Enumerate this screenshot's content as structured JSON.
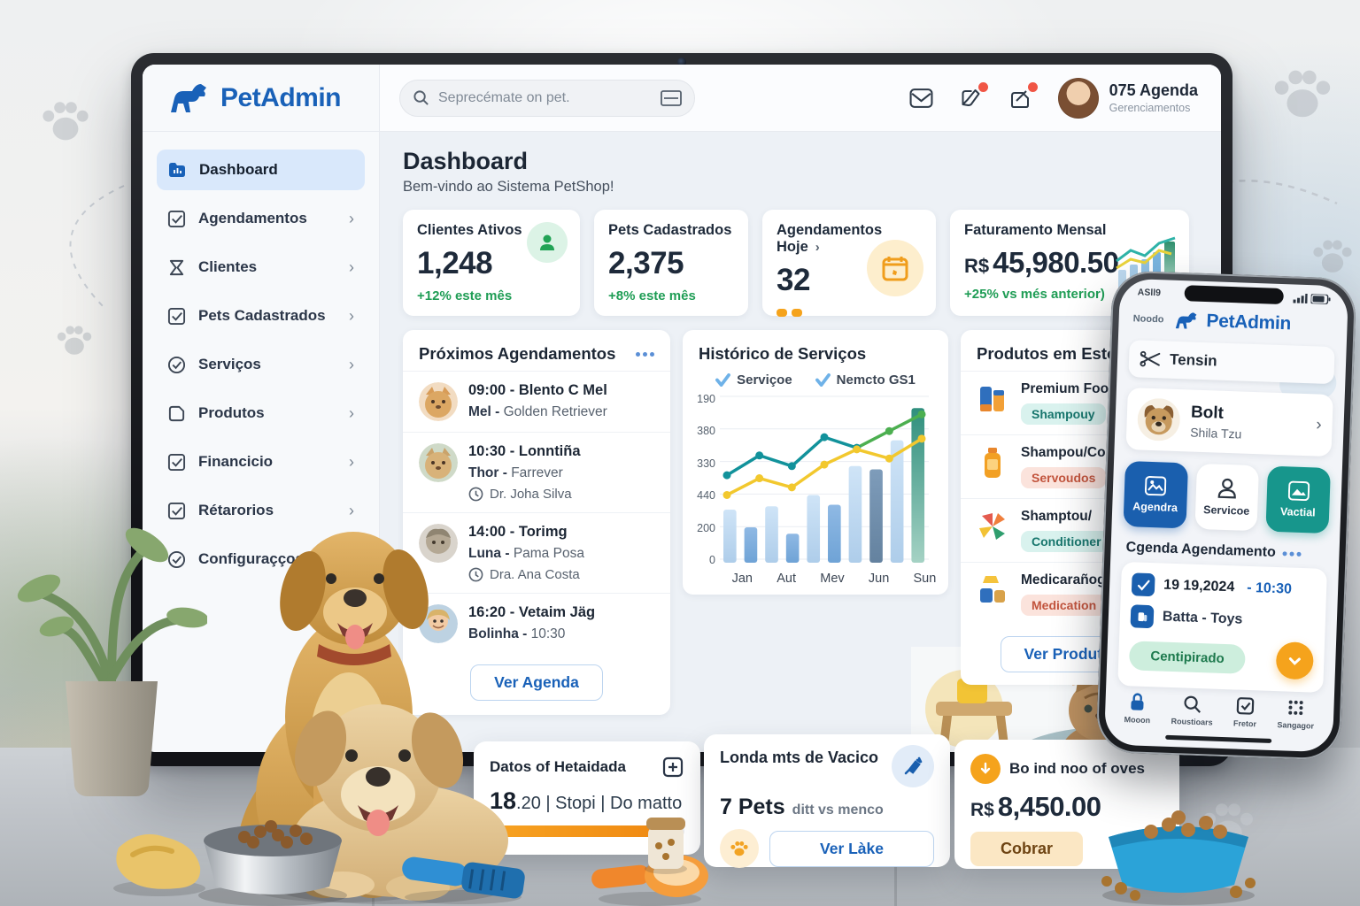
{
  "colors": {
    "brand_blue": "#1961b8",
    "green": "#1f9d55",
    "orange": "#f5a31c",
    "teal": "#17968c",
    "badge_red": "#f05545"
  },
  "laptop": {
    "header": {
      "logo_text": "PetAdmin",
      "search_placeholder": "Seprecémate on pet.",
      "user_name": "075 Agenda",
      "user_subtitle": "Gerenciamentos"
    },
    "sidebar": {
      "items": [
        {
          "label": "Dashboard"
        },
        {
          "label": "Agendamentos"
        },
        {
          "label": "Clientes"
        },
        {
          "label": "Pets Cadastrados"
        },
        {
          "label": "Serviços"
        },
        {
          "label": "Produtos"
        },
        {
          "label": "Financicio"
        },
        {
          "label": "Rétarorios"
        },
        {
          "label": "Configuraçços"
        }
      ]
    },
    "page": {
      "title": "Dashboard",
      "subtitle": "Bem-vindo ao Sistema PetShop!"
    },
    "stats": [
      {
        "label": "Clientes Ativos",
        "value": "1,248",
        "delta": "+12% este mês"
      },
      {
        "label": "Pets Cadastrados",
        "value": "2,375",
        "delta": "+8% este mês"
      },
      {
        "label": "Agendamentos Hoje",
        "value": "32"
      },
      {
        "label": "Faturamento Mensal",
        "currency": "R$",
        "value": "45,980.50",
        "delta": "+25% vs més anterior)"
      }
    ],
    "appointments": {
      "title": "Próximos Agendamentos",
      "items": [
        {
          "time": "09:00 -",
          "title": "Blento C Mel",
          "pet": "Mel -",
          "breed": "Golden Retriever"
        },
        {
          "time": "10:30 -",
          "title": "Lonntiña",
          "pet": "Thor -",
          "breed": "Farrever",
          "doctor": "Dr. Joha Silva"
        },
        {
          "time": "14:00 -",
          "title": "Torimg",
          "pet": "Luna -",
          "breed": "Pama Posa",
          "doctor": "Dra. Ana Costa"
        },
        {
          "time": "16:20 -",
          "title": "Vetaim Jäg",
          "pet": "Bolinha -",
          "breed": "10:30"
        }
      ],
      "cta": "Ver Agenda"
    },
    "products": {
      "title": "Produtos em Estoque",
      "items": [
        {
          "name": "Premium Food 25kg",
          "badge": "Shampouy",
          "badge_style": "teal"
        },
        {
          "name": "Shampou/Conditiong",
          "badge": "Servoudos",
          "badge_style": "red"
        },
        {
          "name": "Shamptou/",
          "badge": "Conditioner",
          "badge_style": "teal"
        },
        {
          "name": "Medicarañogos",
          "badge": "Medication",
          "badge_style": "red"
        }
      ],
      "cta": "Ver Produtos"
    }
  },
  "chart_data": {
    "type": "bar+line",
    "title": "Histórico de Serviços",
    "legend": [
      "Serviçoe",
      "Nemcto GS1"
    ],
    "categories": [
      "Jan",
      "Aut",
      "Mev",
      "Jun",
      "Sun"
    ],
    "y_ticks_top_to_bottom": [
      "190",
      "380",
      "330",
      "440",
      "200",
      "0"
    ],
    "grid": true,
    "legend_position": "top",
    "series": [
      {
        "name": "volume-bars",
        "type": "bar",
        "values": [
          33,
          22,
          35,
          18,
          42,
          36,
          60,
          58,
          76,
          96
        ],
        "bar_fills": [
          "light",
          "mid",
          "light",
          "mid",
          "light",
          "mid",
          "light",
          "steel",
          "light",
          "teal"
        ]
      },
      {
        "name": "Serviçoe",
        "type": "line",
        "color": "#12929b",
        "color_end": "#4caf50",
        "values": [
          54,
          67,
          60,
          79,
          72,
          83,
          94
        ]
      },
      {
        "name": "Nemcto GS1",
        "type": "line",
        "color": "#f2c82e",
        "values": [
          41,
          52,
          46,
          61,
          71,
          65,
          78
        ]
      }
    ]
  },
  "phone": {
    "status_time": "ASll9",
    "header_small": "Noodo",
    "logo_text": "PetAdmin",
    "search_text": "Tensin",
    "pet_card": {
      "name": "Bolt",
      "breed": "Shila Tzu"
    },
    "actions": [
      {
        "label": "Agendra"
      },
      {
        "label": "Servicoe"
      },
      {
        "label": "Vactial"
      }
    ],
    "section_title": "Cgenda Agendamento",
    "appointment": {
      "date": "19 19,2024",
      "time": "- 10:30",
      "pet": "Batta -",
      "pet_rest": "Toys",
      "status": "Centipirado"
    },
    "nav": [
      {
        "label": "Mooon"
      },
      {
        "label": "Roustioars"
      },
      {
        "label": "Fretor"
      },
      {
        "label": "Sangagor"
      }
    ]
  },
  "floating_cards": [
    {
      "title": "Datos of Hetaidada",
      "value_bold": "18",
      "value_rest": ".20 | Stopi | Do matto",
      "progress_pct": 85
    },
    {
      "title": "Londa mts de Vacico",
      "value_bold": "7 Pets",
      "value_rest": "ditt vs menco",
      "cta": "Ver Làke"
    },
    {
      "title": "Bo ind noo of oves",
      "currency": "R$",
      "value": "8,450.00",
      "cta": "Cobrar"
    }
  ]
}
